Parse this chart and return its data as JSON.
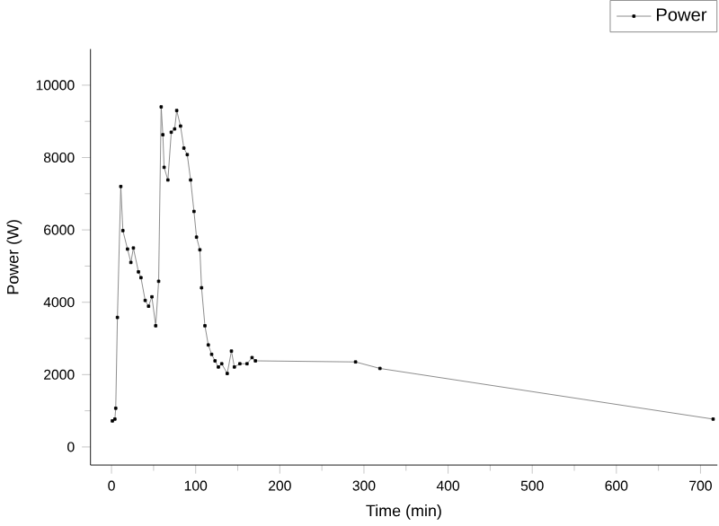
{
  "chart_data": {
    "type": "line",
    "xlabel": "Time (min)",
    "ylabel": "Power (W)",
    "legend": "top right",
    "marker": "square",
    "line_style": "solid",
    "grid": false,
    "x": [
      1,
      4,
      5,
      7,
      11,
      13.5,
      19,
      23,
      26,
      32,
      35,
      40,
      44,
      48,
      52.5,
      56,
      59,
      61,
      62.5,
      67,
      71,
      75,
      77.5,
      82,
      86,
      90,
      94,
      98,
      101,
      105,
      107,
      111,
      115,
      119,
      123,
      127,
      131,
      137.5,
      142.5,
      146,
      152.5,
      161,
      167,
      171,
      290,
      319,
      715
    ],
    "series": [
      {
        "name": "Power",
        "color": "#7f7f7f",
        "values": [
          720,
          770,
          1070,
          3580,
          7200,
          5980,
          5470,
          5100,
          5500,
          4840,
          4680,
          4050,
          3890,
          4150,
          3350,
          4580,
          9400,
          8630,
          7730,
          7380,
          8700,
          8790,
          9300,
          8870,
          8260,
          8080,
          7380,
          6510,
          5800,
          5450,
          4400,
          3350,
          2820,
          2560,
          2380,
          2210,
          2300,
          2030,
          2650,
          2210,
          2300,
          2300,
          2470,
          2380,
          2350,
          2170,
          770
        ]
      }
    ],
    "xlim": [
      -25,
      720
    ],
    "ylim": [
      -500,
      11000
    ],
    "xticks": [
      0,
      100,
      200,
      300,
      400,
      500,
      600,
      700
    ],
    "yticks": [
      0,
      2000,
      4000,
      6000,
      8000,
      10000
    ]
  }
}
